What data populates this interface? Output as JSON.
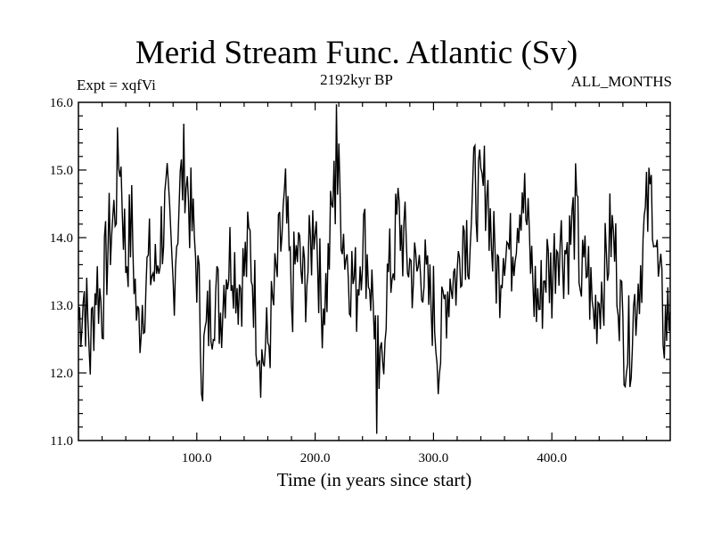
{
  "chart_data": {
    "type": "line",
    "title": "Merid Stream Func. Atlantic (Sv)",
    "subtitle": "2192kyr BP",
    "experiment_label": "Expt = xqfVi",
    "season_label": "ALL_MONTHS",
    "xlabel": "Time (in years since start)",
    "ylabel": "",
    "xlim": [
      0,
      500
    ],
    "ylim": [
      11.0,
      16.0
    ],
    "xticks": [
      100,
      200,
      300,
      400
    ],
    "xtick_labels": [
      "100.0",
      "200.0",
      "300.0",
      "400.0"
    ],
    "yticks": [
      11,
      12,
      13,
      14,
      15,
      16
    ],
    "ytick_labels": [
      "11.0",
      "12.0",
      "13.0",
      "14.0",
      "15.0",
      "16.0"
    ],
    "grid": false,
    "series": [
      {
        "name": "Merid Stream Func. Atlantic",
        "x": [
          0,
          5,
          10,
          15,
          20,
          25,
          30,
          35,
          40,
          45,
          50,
          55,
          60,
          65,
          70,
          75,
          80,
          85,
          90,
          95,
          100,
          105,
          110,
          115,
          120,
          125,
          130,
          135,
          140,
          145,
          150,
          155,
          160,
          165,
          170,
          175,
          180,
          185,
          190,
          195,
          200,
          205,
          210,
          215,
          220,
          225,
          230,
          235,
          240,
          245,
          250,
          255,
          260,
          265,
          270,
          275,
          280,
          285,
          290,
          295,
          300,
          305,
          310,
          315,
          320,
          325,
          330,
          335,
          340,
          345,
          350,
          355,
          360,
          365,
          370,
          375,
          380,
          385,
          390,
          395,
          400,
          405,
          410,
          415,
          420,
          425,
          430,
          435,
          440,
          445,
          450,
          455,
          460,
          465,
          470,
          475,
          480,
          485,
          490,
          495,
          500
        ],
        "values": [
          12.8,
          13.2,
          12.3,
          13.4,
          13.0,
          13.9,
          14.3,
          15.3,
          13.7,
          14.2,
          12.6,
          13.2,
          13.6,
          13.4,
          14.1,
          14.4,
          13.3,
          14.6,
          15.1,
          14.3,
          13.6,
          12.1,
          12.8,
          13.2,
          12.9,
          13.6,
          13.8,
          13.3,
          13.5,
          13.9,
          12.9,
          12.2,
          12.4,
          13.0,
          13.8,
          14.4,
          13.1,
          13.8,
          13.3,
          13.6,
          14.5,
          13.0,
          13.3,
          14.6,
          14.8,
          13.9,
          13.5,
          13.2,
          14.1,
          13.6,
          12.9,
          11.7,
          13.2,
          13.6,
          14.3,
          13.9,
          13.6,
          13.4,
          13.7,
          13.1,
          13.0,
          12.2,
          13.1,
          13.5,
          13.4,
          14.2,
          14.0,
          14.8,
          14.5,
          14.9,
          13.8,
          13.4,
          14.1,
          13.7,
          14.3,
          14.8,
          14.0,
          13.2,
          13.0,
          13.6,
          13.4,
          14.1,
          13.8,
          13.9,
          14.4,
          13.3,
          13.6,
          12.8,
          13.2,
          13.5,
          14.1,
          13.6,
          12.6,
          12.4,
          13.0,
          13.6,
          14.3,
          14.7,
          13.3,
          12.7,
          12.9
        ]
      }
    ],
    "markers": {
      "max": {
        "x": 218,
        "y": 15.97
      },
      "min": {
        "x": 252,
        "y": 11.1
      }
    }
  }
}
